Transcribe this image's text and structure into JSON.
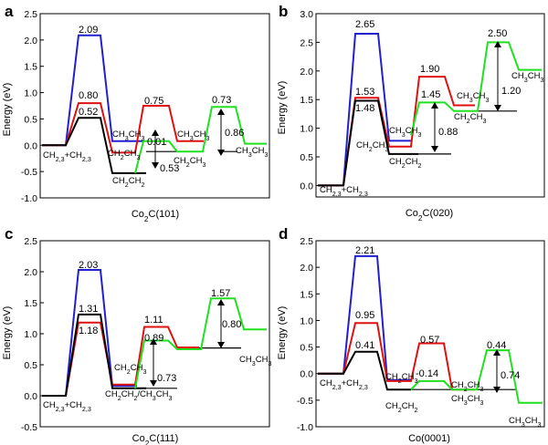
{
  "chart_data": [
    {
      "type": "line",
      "panel": "a",
      "title": "",
      "xlabel": "Co2C(101)",
      "ylabel": "Energy (eV)",
      "ylim": [
        -1.0,
        2.5
      ],
      "yticks": [
        "-1.0",
        "-0.5",
        "0.0",
        "0.5",
        "1.0",
        "1.5",
        "2.0",
        "2.5"
      ],
      "series": [
        {
          "name": "black",
          "color": "#000000",
          "steps": [
            0.0,
            0.52,
            -0.53,
            -0.53
          ]
        },
        {
          "name": "blue",
          "color": "#2020d0",
          "steps": [
            0.0,
            2.09,
            0.08,
            0.08
          ]
        },
        {
          "name": "red",
          "color": "#e01010",
          "steps": [
            0.0,
            0.8,
            0.01,
            0.75,
            0.08,
            0.08
          ]
        },
        {
          "name": "green",
          "color": "#20e020",
          "steps": [
            -0.12,
            -0.12,
            0.73,
            0.73,
            0.0
          ]
        }
      ],
      "annotations": {
        "values": [
          "2.09",
          "0.80",
          "0.52",
          "0.75",
          "0.01",
          "0.53",
          "0.73",
          "0.86"
        ],
        "species": [
          "CH2,3+CH2,3",
          "CH3CH3",
          "CH2CH3",
          "CH2CH2",
          "CH3CH3",
          "CH2CH3",
          "CH3CH3"
        ]
      }
    },
    {
      "type": "line",
      "panel": "b",
      "title": "",
      "xlabel": "Co2C(020)",
      "ylabel": "Energy (eV)",
      "ylim": [
        -0.2,
        3.0
      ],
      "yticks": [
        "0.0",
        "0.5",
        "1.0",
        "1.5",
        "2.0",
        "2.5",
        "3.0"
      ],
      "series": [
        {
          "name": "black",
          "color": "#000000",
          "steps": [
            0.0,
            1.48,
            0.55,
            0.55
          ]
        },
        {
          "name": "blue",
          "color": "#2020d0",
          "steps": [
            0.0,
            2.65,
            0.78
          ]
        },
        {
          "name": "red",
          "color": "#e01010",
          "steps": [
            0.0,
            1.53,
            0.68,
            1.9,
            1.4
          ]
        },
        {
          "name": "green",
          "color": "#20e020",
          "steps": [
            1.45,
            1.3,
            2.5,
            2.0
          ]
        }
      ],
      "annotations": {
        "values": [
          "2.65",
          "1.53",
          "1.48",
          "1.90",
          "1.45",
          "2.50",
          "0.88",
          "1.20"
        ],
        "species": [
          "CH2,3+CH2,3",
          "CH3CH3",
          "CH2CH3",
          "CH2CH2",
          "CH3CH3",
          "CH2CH3",
          "CH3CH3"
        ]
      }
    },
    {
      "type": "line",
      "panel": "c",
      "title": "",
      "xlabel": "Co2C(111)",
      "ylabel": "Energy (eV)",
      "ylim": [
        -0.5,
        2.5
      ],
      "yticks": [
        "-0.5",
        "0.0",
        "0.5",
        "1.0",
        "1.5",
        "2.0",
        "2.5"
      ],
      "series": [
        {
          "name": "black",
          "color": "#000000",
          "steps": [
            0.0,
            1.31,
            0.12,
            0.12
          ]
        },
        {
          "name": "blue",
          "color": "#2020d0",
          "steps": [
            0.0,
            2.03,
            0.16
          ]
        },
        {
          "name": "red",
          "color": "#e01010",
          "steps": [
            0.0,
            1.18,
            0.18,
            1.11,
            0.78
          ]
        },
        {
          "name": "green",
          "color": "#20e020",
          "steps": [
            0.89,
            0.75,
            1.57,
            1.07
          ]
        }
      ],
      "annotations": {
        "values": [
          "2.03",
          "1.31",
          "1.18",
          "1.11",
          "0.89",
          "1.57",
          "0.80",
          "0.73"
        ],
        "species": [
          "CH2,3+CH2,3",
          "CH2CH3",
          "CH2CH2/CH3CH3",
          "CH3CH3"
        ]
      }
    },
    {
      "type": "line",
      "panel": "d",
      "title": "",
      "xlabel": "Co(0001)",
      "ylabel": "Energy (eV)",
      "ylim": [
        -1.0,
        2.5
      ],
      "yticks": [
        "-1.0",
        "-0.5",
        "0.0",
        "0.5",
        "1.0",
        "1.5",
        "2.0",
        "2.5"
      ],
      "series": [
        {
          "name": "black",
          "color": "#000000",
          "steps": [
            0.0,
            0.41,
            -0.3,
            -0.3
          ]
        },
        {
          "name": "blue",
          "color": "#2020d0",
          "steps": [
            0.0,
            2.21,
            -0.12
          ]
        },
        {
          "name": "red",
          "color": "#e01010",
          "steps": [
            0.0,
            0.95,
            -0.14,
            0.57,
            -0.3
          ]
        },
        {
          "name": "green",
          "color": "#20e020",
          "steps": [
            -0.14,
            -0.3,
            0.44,
            -0.55
          ]
        }
      ],
      "annotations": {
        "values": [
          "2.21",
          "0.95",
          "0.41",
          "0.57",
          "-0.14",
          "0.44",
          "0.74"
        ],
        "species": [
          "CH2,3+CH2,3",
          "CH2CH3",
          "CH2CH2",
          "CH2CH3",
          "CH3CH3",
          "CH3CH3"
        ]
      }
    }
  ]
}
